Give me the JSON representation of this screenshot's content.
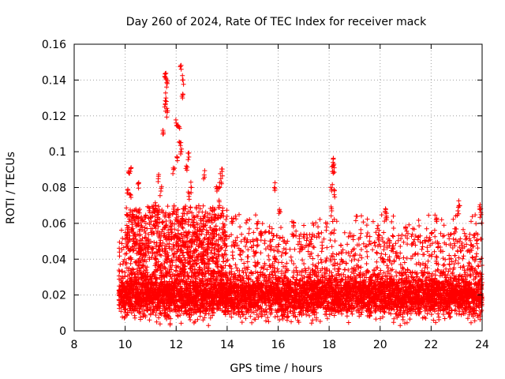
{
  "chart_data": {
    "type": "scatter",
    "title": "Day 260 of 2024, Rate Of TEC Index for receiver mack",
    "xlabel": "GPS time / hours",
    "ylabel": "ROTI / TECUs",
    "xlim": [
      8,
      24
    ],
    "ylim": [
      0,
      0.16
    ],
    "x_ticks": [
      "8",
      "10",
      "12",
      "14",
      "16",
      "18",
      "20",
      "22",
      "24"
    ],
    "y_ticks": [
      "0",
      "0.02",
      "0.04",
      "0.06",
      "0.08",
      "0.1",
      "0.12",
      "0.14",
      "0.16"
    ],
    "grid": true,
    "marker": "plus",
    "color": "#ff0000",
    "series": [
      {
        "name": "ROTI",
        "x_range": [
          9.75,
          24.0
        ],
        "base_band": [
          0.005,
          0.035
        ],
        "notable_points": [
          {
            "x": 11.55,
            "y": 0.142
          },
          {
            "x": 11.6,
            "y": 0.141
          },
          {
            "x": 11.65,
            "y": 0.138
          },
          {
            "x": 11.6,
            "y": 0.13
          },
          {
            "x": 11.55,
            "y": 0.125
          },
          {
            "x": 11.65,
            "y": 0.122
          },
          {
            "x": 12.2,
            "y": 0.146
          },
          {
            "x": 12.25,
            "y": 0.14
          },
          {
            "x": 12.25,
            "y": 0.13
          },
          {
            "x": 12.0,
            "y": 0.116
          },
          {
            "x": 12.1,
            "y": 0.114
          },
          {
            "x": 11.5,
            "y": 0.11
          },
          {
            "x": 12.15,
            "y": 0.105
          },
          {
            "x": 12.2,
            "y": 0.1
          },
          {
            "x": 12.05,
            "y": 0.095
          },
          {
            "x": 12.5,
            "y": 0.097
          },
          {
            "x": 12.4,
            "y": 0.092
          },
          {
            "x": 11.9,
            "y": 0.09
          },
          {
            "x": 10.2,
            "y": 0.089
          },
          {
            "x": 10.15,
            "y": 0.088
          },
          {
            "x": 10.5,
            "y": 0.082
          },
          {
            "x": 10.1,
            "y": 0.079
          },
          {
            "x": 10.2,
            "y": 0.076
          },
          {
            "x": 11.3,
            "y": 0.085
          },
          {
            "x": 11.4,
            "y": 0.078
          },
          {
            "x": 12.6,
            "y": 0.08
          },
          {
            "x": 12.5,
            "y": 0.075
          },
          {
            "x": 13.8,
            "y": 0.089
          },
          {
            "x": 13.75,
            "y": 0.085
          },
          {
            "x": 13.7,
            "y": 0.08
          },
          {
            "x": 13.1,
            "y": 0.087
          },
          {
            "x": 13.6,
            "y": 0.078
          },
          {
            "x": 15.85,
            "y": 0.08
          },
          {
            "x": 16.05,
            "y": 0.067
          },
          {
            "x": 18.15,
            "y": 0.094
          },
          {
            "x": 18.2,
            "y": 0.091
          },
          {
            "x": 18.15,
            "y": 0.089
          },
          {
            "x": 18.1,
            "y": 0.079
          },
          {
            "x": 18.2,
            "y": 0.076
          },
          {
            "x": 18.1,
            "y": 0.067
          },
          {
            "x": 20.2,
            "y": 0.066
          },
          {
            "x": 20.25,
            "y": 0.064
          },
          {
            "x": 23.1,
            "y": 0.07
          },
          {
            "x": 23.05,
            "y": 0.067
          },
          {
            "x": 23.9,
            "y": 0.068
          },
          {
            "x": 23.95,
            "y": 0.066
          },
          {
            "x": 22.2,
            "y": 0.062
          },
          {
            "x": 21.0,
            "y": 0.058
          },
          {
            "x": 22.95,
            "y": 0.057
          },
          {
            "x": 13.7,
            "y": 0.07
          },
          {
            "x": 14.2,
            "y": 0.06
          },
          {
            "x": 15.2,
            "y": 0.06
          },
          {
            "x": 16.6,
            "y": 0.058
          },
          {
            "x": 17.9,
            "y": 0.058
          },
          {
            "x": 10.3,
            "y": 0.065
          },
          {
            "x": 10.5,
            "y": 0.06
          },
          {
            "x": 11.2,
            "y": 0.07
          },
          {
            "x": 11.3,
            "y": 0.065
          },
          {
            "x": 12.0,
            "y": 0.065
          },
          {
            "x": 12.3,
            "y": 0.068
          },
          {
            "x": 12.7,
            "y": 0.062
          },
          {
            "x": 13.5,
            "y": 0.065
          }
        ]
      }
    ]
  }
}
